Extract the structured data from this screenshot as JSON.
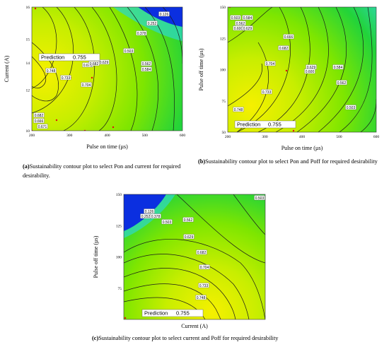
{
  "chart_data": [
    {
      "type": "contour",
      "xlabel": "Pulse on time (µs)",
      "ylabel": "Current (A)",
      "x_ticks": [
        "200",
        "300",
        "400",
        "500",
        "600"
      ],
      "y_ticks": [
        "10",
        "12",
        "14",
        "15",
        "16"
      ],
      "xlim": [
        200,
        600
      ],
      "ylim": [
        10,
        16
      ],
      "contour_labels": [
        "0.126",
        "0.252",
        "0.378",
        "0.503",
        "0.562",
        "0.584",
        "0.629",
        "0.671",
        "0.682",
        "0.704",
        "0.733",
        "0.748",
        "0.682",
        "0.666",
        "0.671"
      ],
      "prediction_label": "Prediction",
      "prediction_value": "0.755",
      "caption_prefix": "(a)",
      "caption": "Sustainability contour plot to select Pon and current for required desirability."
    },
    {
      "type": "contour",
      "xlabel": "Pulse on time (µs)",
      "ylabel": "Pulse off time (µs)",
      "x_ticks": [
        "200",
        "300",
        "400",
        "500",
        "600"
      ],
      "y_ticks": [
        "50",
        "75",
        "100",
        "125",
        "150"
      ],
      "xlim": [
        200,
        600
      ],
      "ylim": [
        50,
        150
      ],
      "contour_labels": [
        "0.503",
        "0.584",
        "0.562",
        "0.600",
        "0.629",
        "0.666",
        "0.682",
        "0.704",
        "0.733",
        "0.748",
        "0.629",
        "0.600",
        "0.584",
        "0.562",
        "0.503"
      ],
      "prediction_label": "Prediction",
      "prediction_value": "0.755",
      "caption_prefix": "(b)",
      "caption": "Sustainability contour plot to select Pon and Poff for required desirability"
    },
    {
      "type": "contour",
      "xlabel": "Current (A)",
      "ylabel": "Pulse off time (µs)",
      "x_ticks": [],
      "y_ticks": [
        "75",
        "100",
        "125",
        "150"
      ],
      "xlim": [
        10,
        16
      ],
      "ylim": [
        50,
        150
      ],
      "contour_labels": [
        "0.503",
        "0.126",
        "0.252",
        "0.378",
        "0.503",
        "0.562",
        "0.629",
        "0.682",
        "0.704",
        "0.733",
        "0.748"
      ],
      "prediction_label": "Prediction",
      "prediction_value": "0.755",
      "caption_prefix": "(c)",
      "caption": "Sustainability contour plot to select current and Poff for required desirability"
    }
  ],
  "colors": {
    "high": "#f6f000",
    "mid": "#7ee600",
    "low_green": "#22d33a",
    "cyan": "#2fd8c0",
    "blue": "#0b2fe0",
    "contour_line": "#1a1a1a"
  }
}
